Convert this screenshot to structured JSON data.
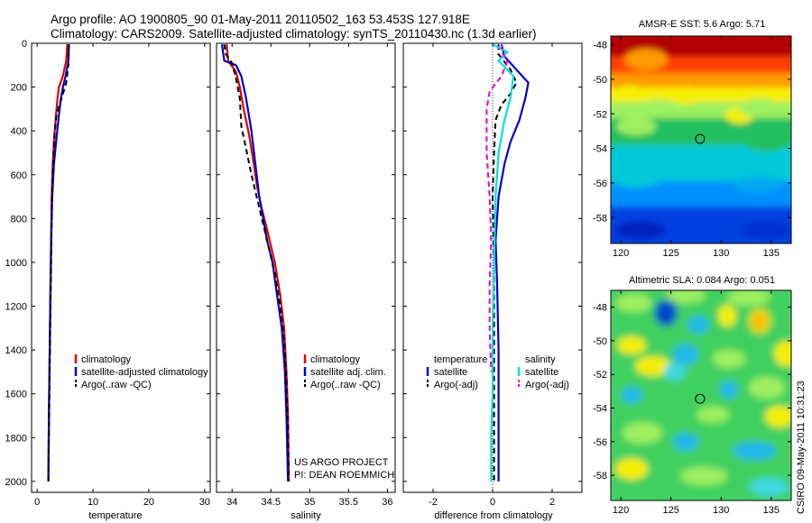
{
  "header": {
    "line1": "Argo profile: AO 1900805_90 01-May-2011 20110502_163 53.453S 127.918E",
    "line2": "Climatology: CARS2009. Satellite-adjusted climatology: synTS_20110430.nc (1.3d earlier)"
  },
  "colors": {
    "red": "#e00000",
    "blue": "#0000cc",
    "black": "#000000",
    "cyan": "#00e0e0",
    "magenta": "#e000e0"
  },
  "chart_data": [
    {
      "type": "line",
      "xlabel": "temperature",
      "ylabel": "",
      "xlim": [
        -1,
        31
      ],
      "ylim": [
        2050,
        0
      ],
      "xticks": [
        0,
        10,
        20,
        30
      ],
      "yticks": [
        0,
        200,
        400,
        600,
        800,
        1000,
        1200,
        1400,
        1600,
        1800,
        2000
      ],
      "legend": {
        "placement": "lower-right",
        "entries": [
          "climatology",
          "satellite-adjusted climatology",
          "Argo(..raw -QC)"
        ]
      },
      "series": [
        {
          "name": "climatology",
          "color": "red",
          "dash": "solid",
          "points": [
            [
              5.4,
              5
            ],
            [
              5.2,
              80
            ],
            [
              4.6,
              150
            ],
            [
              3.9,
              200
            ],
            [
              3.6,
              260
            ],
            [
              3.3,
              350
            ],
            [
              3.0,
              450
            ],
            [
              2.8,
              550
            ],
            [
              2.6,
              700
            ],
            [
              2.5,
              900
            ],
            [
              2.4,
              1100
            ],
            [
              2.3,
              1300
            ],
            [
              2.2,
              1500
            ],
            [
              2.1,
              1700
            ],
            [
              2.0,
              2000
            ]
          ]
        },
        {
          "name": "satellite-adjusted climatology",
          "color": "blue",
          "dash": "solid",
          "points": [
            [
              5.7,
              5
            ],
            [
              5.6,
              80
            ],
            [
              5.1,
              150
            ],
            [
              4.6,
              200
            ],
            [
              4.2,
              260
            ],
            [
              3.8,
              350
            ],
            [
              3.4,
              450
            ],
            [
              3.0,
              550
            ],
            [
              2.7,
              700
            ],
            [
              2.5,
              900
            ],
            [
              2.4,
              1100
            ],
            [
              2.3,
              1300
            ],
            [
              2.2,
              1500
            ],
            [
              2.1,
              1700
            ],
            [
              2.0,
              2000
            ]
          ]
        },
        {
          "name": "Argo(..raw -QC)",
          "color": "black",
          "dash": "dashed",
          "points": [
            [
              5.6,
              5
            ],
            [
              5.6,
              100
            ],
            [
              5.2,
              180
            ],
            [
              4.4,
              250
            ],
            [
              3.5,
              320
            ],
            [
              3.1,
              420
            ],
            [
              2.9,
              520
            ],
            [
              2.7,
              650
            ],
            [
              2.6,
              800
            ],
            [
              2.5,
              1000
            ],
            [
              2.4,
              1200
            ],
            [
              2.3,
              1400
            ],
            [
              2.2,
              1600
            ],
            [
              2.1,
              1800
            ],
            [
              2.0,
              2000
            ]
          ]
        }
      ]
    },
    {
      "type": "line",
      "xlabel": "salinity",
      "ylabel": "",
      "xlim": [
        33.8,
        36.1
      ],
      "ylim": [
        2050,
        0
      ],
      "xticks": [
        34,
        34.5,
        35,
        35.5,
        36
      ],
      "xtick_labels": [
        "34",
        "34.5",
        "35",
        "35.5",
        "36"
      ],
      "legend": {
        "placement": "lower-right",
        "entries": [
          "climatology",
          "satellite adj. clim.",
          "Argo(..raw -QC)"
        ]
      },
      "annotations": [
        "US ARGO PROJECT",
        "PI: DEAN ROEMMICH"
      ],
      "series": [
        {
          "name": "climatology",
          "color": "red",
          "dash": "solid",
          "points": [
            [
              33.93,
              5
            ],
            [
              33.95,
              80
            ],
            [
              34.05,
              130
            ],
            [
              34.1,
              200
            ],
            [
              34.15,
              300
            ],
            [
              34.22,
              420
            ],
            [
              34.28,
              550
            ],
            [
              34.32,
              650
            ],
            [
              34.38,
              750
            ],
            [
              34.45,
              850
            ],
            [
              34.55,
              1000
            ],
            [
              34.62,
              1150
            ],
            [
              34.67,
              1300
            ],
            [
              34.7,
              1500
            ],
            [
              34.72,
              1700
            ],
            [
              34.73,
              2000
            ]
          ]
        },
        {
          "name": "satellite adj. clim.",
          "color": "blue",
          "dash": "solid",
          "points": [
            [
              33.87,
              5
            ],
            [
              33.9,
              80
            ],
            [
              34.05,
              100
            ],
            [
              34.12,
              150
            ],
            [
              34.18,
              250
            ],
            [
              34.25,
              400
            ],
            [
              34.3,
              550
            ],
            [
              34.35,
              700
            ],
            [
              34.4,
              800
            ],
            [
              34.45,
              900
            ],
            [
              34.52,
              1000
            ],
            [
              34.58,
              1150
            ],
            [
              34.64,
              1300
            ],
            [
              34.68,
              1500
            ],
            [
              34.7,
              1700
            ],
            [
              34.72,
              2000
            ]
          ]
        },
        {
          "name": "Argo(..raw -QC)",
          "color": "black",
          "dash": "dashed",
          "points": [
            [
              33.9,
              5
            ],
            [
              33.92,
              50
            ],
            [
              34.0,
              90
            ],
            [
              34.05,
              160
            ],
            [
              34.1,
              250
            ],
            [
              34.12,
              380
            ],
            [
              34.18,
              480
            ],
            [
              34.25,
              600
            ],
            [
              34.35,
              750
            ],
            [
              34.45,
              900
            ],
            [
              34.55,
              1050
            ],
            [
              34.62,
              1200
            ],
            [
              34.67,
              1350
            ],
            [
              34.7,
              1550
            ],
            [
              34.72,
              1750
            ],
            [
              34.73,
              2000
            ]
          ]
        }
      ]
    },
    {
      "type": "line",
      "xlabel": "difference from climatology",
      "ylabel": "",
      "xlim": [
        -3,
        3
      ],
      "ylim": [
        2050,
        0
      ],
      "xticks": [
        -2,
        0,
        2
      ],
      "legend": {
        "placement": "lower-center",
        "headings": [
          "temperature",
          "salinity"
        ],
        "entries": [
          "satellite",
          "Argo(-adj)",
          "satellite",
          "Argo(-adj)"
        ]
      },
      "series": [
        {
          "name": "temperature satellite",
          "color": "blue",
          "dash": "solid",
          "points": [
            [
              0.3,
              5
            ],
            [
              0.4,
              60
            ],
            [
              0.8,
              120
            ],
            [
              1.2,
              180
            ],
            [
              1.1,
              250
            ],
            [
              0.9,
              350
            ],
            [
              0.6,
              450
            ],
            [
              0.4,
              550
            ],
            [
              0.2,
              700
            ],
            [
              0.1,
              900
            ],
            [
              0.15,
              1100
            ],
            [
              0.2,
              1400
            ],
            [
              0.2,
              1700
            ],
            [
              0.2,
              2000
            ]
          ]
        },
        {
          "name": "temperature Argo(-adj)",
          "color": "black",
          "dash": "dashed",
          "points": [
            [
              0.2,
              5
            ],
            [
              0.2,
              50
            ],
            [
              0.6,
              120
            ],
            [
              0.8,
              180
            ],
            [
              0.6,
              230
            ],
            [
              0.3,
              280
            ],
            [
              0.1,
              350
            ],
            [
              0.05,
              500
            ],
            [
              0.0,
              700
            ],
            [
              0.05,
              1000
            ],
            [
              0.05,
              1300
            ],
            [
              0.05,
              1600
            ],
            [
              0.05,
              2000
            ]
          ]
        },
        {
          "name": "salinity satellite",
          "color": "cyan",
          "dash": "solid",
          "points": [
            [
              0.0,
              5
            ],
            [
              0.5,
              40
            ],
            [
              0.2,
              80
            ],
            [
              0.7,
              150
            ],
            [
              0.6,
              250
            ],
            [
              0.4,
              350
            ],
            [
              0.2,
              500
            ],
            [
              0.1,
              700
            ],
            [
              0.05,
              1000
            ],
            [
              0.0,
              1300
            ],
            [
              0.0,
              1600
            ],
            [
              -0.05,
              1800
            ],
            [
              -0.05,
              2000
            ]
          ]
        },
        {
          "name": "salinity Argo(-adj)",
          "color": "magenta",
          "dash": "dashed",
          "points": [
            [
              0.3,
              5
            ],
            [
              0.3,
              40
            ],
            [
              0.5,
              80
            ],
            [
              0.3,
              150
            ],
            [
              -0.1,
              220
            ],
            [
              -0.2,
              300
            ],
            [
              -0.2,
              500
            ],
            [
              -0.1,
              700
            ],
            [
              -0.05,
              900
            ],
            [
              -0.1,
              1100
            ],
            [
              -0.1,
              1300
            ],
            [
              -0.05,
              1500
            ]
          ]
        }
      ]
    },
    {
      "type": "heatmap",
      "title": "AMSR-E SST: 5.6 Argo: 5.71",
      "xlim": [
        119,
        137
      ],
      "ylim": [
        -59.5,
        -47.5
      ],
      "xticks": [
        120,
        125,
        130,
        135
      ],
      "yticks": [
        -48,
        -50,
        -52,
        -54,
        -56,
        -58
      ],
      "marker": {
        "x": 127.9,
        "y": -53.45
      },
      "colorscale": "jet"
    },
    {
      "type": "heatmap",
      "title": "Altimetric SLA: 0.084 Argo: 0.051",
      "xlim": [
        119,
        137
      ],
      "ylim": [
        -59.5,
        -47
      ],
      "xticks": [
        120,
        125,
        130,
        135
      ],
      "yticks": [
        -48,
        -50,
        -52,
        -54,
        -56,
        -58
      ],
      "marker": {
        "x": 127.9,
        "y": -53.45
      },
      "colorscale": "jet"
    }
  ],
  "side_stamp": "CSIRO 09-May-2011 10:31:23"
}
